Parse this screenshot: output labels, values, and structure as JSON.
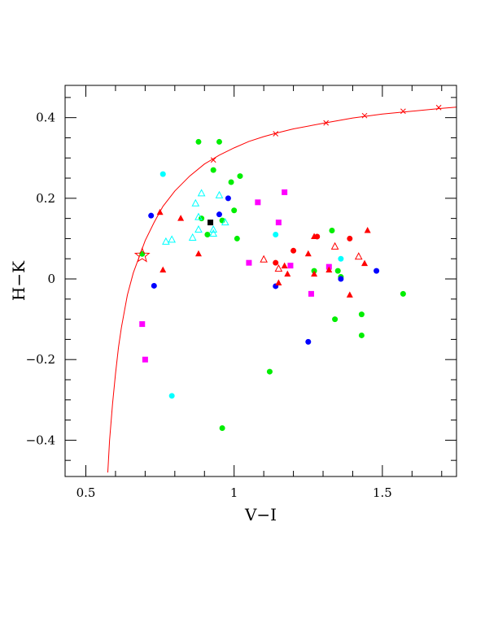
{
  "chart_data": {
    "type": "scatter",
    "xlabel": "V−I",
    "ylabel": "H−K",
    "xlim": [
      0.43,
      1.75
    ],
    "ylim": [
      -0.49,
      0.48
    ],
    "x_ticks": [
      {
        "value": 0.5,
        "label": "0.5"
      },
      {
        "value": 1.0,
        "label": "1"
      },
      {
        "value": 1.5,
        "label": "1.5"
      }
    ],
    "y_ticks": [
      {
        "value": 0.4,
        "label": "0.4"
      },
      {
        "value": 0.2,
        "label": "0.2"
      },
      {
        "value": 0.0,
        "label": "0"
      },
      {
        "value": -0.2,
        "label": "−0.2"
      },
      {
        "value": -0.4,
        "label": "−0.4"
      }
    ],
    "colors": {
      "red": "#ff0000",
      "green": "#00ee00",
      "blue": "#0000ff",
      "cyan": "#00ffff",
      "magenta": "#ff00ff",
      "black": "#000000",
      "curve": "#ff0000"
    },
    "curve": {
      "x": [
        0.574,
        0.58,
        0.59,
        0.6,
        0.61,
        0.62,
        0.64,
        0.66,
        0.68,
        0.7,
        0.73,
        0.76,
        0.8,
        0.85,
        0.9,
        0.95,
        1.0,
        1.05,
        1.1,
        1.15,
        1.2,
        1.3,
        1.4,
        1.5,
        1.6,
        1.7,
        1.75
      ],
      "y": [
        -0.48,
        -0.4,
        -0.31,
        -0.235,
        -0.17,
        -0.12,
        -0.04,
        0.015,
        0.055,
        0.095,
        0.14,
        0.18,
        0.218,
        0.255,
        0.285,
        0.307,
        0.325,
        0.341,
        0.353,
        0.363,
        0.372,
        0.386,
        0.399,
        0.409,
        0.416,
        0.423,
        0.426
      ]
    },
    "curve_markers": [
      {
        "x": 0.93,
        "y": 0.295
      },
      {
        "x": 1.14,
        "y": 0.36
      },
      {
        "x": 1.31,
        "y": 0.387
      },
      {
        "x": 1.44,
        "y": 0.405
      },
      {
        "x": 1.57,
        "y": 0.416
      },
      {
        "x": 1.69,
        "y": 0.425
      }
    ],
    "star": {
      "x": 0.69,
      "y": 0.058
    },
    "series": [
      {
        "marker": "filled-circle",
        "color": "green",
        "points": [
          {
            "x": 0.88,
            "y": 0.34
          },
          {
            "x": 0.95,
            "y": 0.34
          },
          {
            "x": 0.93,
            "y": 0.27
          },
          {
            "x": 1.02,
            "y": 0.255
          },
          {
            "x": 0.99,
            "y": 0.24
          },
          {
            "x": 1.0,
            "y": 0.17
          },
          {
            "x": 0.96,
            "y": 0.145
          },
          {
            "x": 0.89,
            "y": 0.15
          },
          {
            "x": 0.91,
            "y": 0.11
          },
          {
            "x": 1.01,
            "y": 0.1
          },
          {
            "x": 1.33,
            "y": 0.12
          },
          {
            "x": 1.27,
            "y": 0.02
          },
          {
            "x": 1.35,
            "y": 0.02
          },
          {
            "x": 1.36,
            "y": 0.005
          },
          {
            "x": 1.57,
            "y": -0.037
          },
          {
            "x": 1.43,
            "y": -0.088
          },
          {
            "x": 1.34,
            "y": -0.1
          },
          {
            "x": 1.43,
            "y": -0.14
          },
          {
            "x": 1.12,
            "y": -0.23
          },
          {
            "x": 0.96,
            "y": -0.37
          }
        ]
      },
      {
        "marker": "filled-circle",
        "color": "blue",
        "points": [
          {
            "x": 0.72,
            "y": 0.157
          },
          {
            "x": 0.98,
            "y": 0.2
          },
          {
            "x": 0.95,
            "y": 0.16
          },
          {
            "x": 0.73,
            "y": -0.017
          },
          {
            "x": 1.14,
            "y": -0.018
          },
          {
            "x": 1.36,
            "y": 0.0
          },
          {
            "x": 1.48,
            "y": 0.02
          },
          {
            "x": 1.25,
            "y": -0.156
          }
        ]
      },
      {
        "marker": "filled-circle",
        "color": "cyan",
        "points": [
          {
            "x": 0.76,
            "y": 0.26
          },
          {
            "x": 1.14,
            "y": 0.11
          },
          {
            "x": 1.36,
            "y": 0.05
          },
          {
            "x": 0.79,
            "y": -0.29
          }
        ]
      },
      {
        "marker": "filled-circle",
        "color": "red",
        "points": [
          {
            "x": 1.28,
            "y": 0.105
          },
          {
            "x": 1.39,
            "y": 0.1
          },
          {
            "x": 1.2,
            "y": 0.07
          },
          {
            "x": 1.14,
            "y": 0.04
          }
        ]
      },
      {
        "marker": "filled-square",
        "color": "magenta",
        "points": [
          {
            "x": 1.08,
            "y": 0.19
          },
          {
            "x": 1.17,
            "y": 0.215
          },
          {
            "x": 1.15,
            "y": 0.14
          },
          {
            "x": 1.05,
            "y": 0.04
          },
          {
            "x": 1.19,
            "y": 0.033
          },
          {
            "x": 1.32,
            "y": 0.03
          },
          {
            "x": 1.26,
            "y": -0.037
          },
          {
            "x": 0.69,
            "y": -0.112
          },
          {
            "x": 0.7,
            "y": -0.2
          }
        ]
      },
      {
        "marker": "filled-square",
        "color": "black",
        "points": [
          {
            "x": 0.92,
            "y": 0.14
          }
        ]
      },
      {
        "marker": "filled-triangle",
        "color": "red",
        "points": [
          {
            "x": 0.75,
            "y": 0.165
          },
          {
            "x": 0.82,
            "y": 0.15
          },
          {
            "x": 1.27,
            "y": 0.105
          },
          {
            "x": 1.45,
            "y": 0.12
          },
          {
            "x": 0.76,
            "y": 0.022
          },
          {
            "x": 0.88,
            "y": 0.062
          },
          {
            "x": 1.25,
            "y": 0.062
          },
          {
            "x": 1.18,
            "y": 0.012
          },
          {
            "x": 1.27,
            "y": 0.012
          },
          {
            "x": 1.17,
            "y": 0.032
          },
          {
            "x": 1.32,
            "y": 0.022
          },
          {
            "x": 1.44,
            "y": 0.038
          },
          {
            "x": 1.15,
            "y": -0.01
          },
          {
            "x": 1.39,
            "y": -0.04
          }
        ]
      },
      {
        "marker": "open-triangle",
        "color": "cyan",
        "points": [
          {
            "x": 0.89,
            "y": 0.212
          },
          {
            "x": 0.95,
            "y": 0.207
          },
          {
            "x": 0.87,
            "y": 0.187
          },
          {
            "x": 0.88,
            "y": 0.153
          },
          {
            "x": 0.97,
            "y": 0.14
          },
          {
            "x": 0.88,
            "y": 0.122
          },
          {
            "x": 0.93,
            "y": 0.122
          },
          {
            "x": 0.93,
            "y": 0.112
          },
          {
            "x": 0.86,
            "y": 0.102
          },
          {
            "x": 0.77,
            "y": 0.092
          },
          {
            "x": 0.79,
            "y": 0.097
          }
        ]
      },
      {
        "marker": "open-triangle",
        "color": "red",
        "points": [
          {
            "x": 1.34,
            "y": 0.08
          },
          {
            "x": 1.42,
            "y": 0.055
          },
          {
            "x": 1.1,
            "y": 0.048
          },
          {
            "x": 1.15,
            "y": 0.025
          }
        ]
      },
      {
        "marker": "filled-circle",
        "color": "green",
        "points": [
          {
            "x": 0.69,
            "y": 0.062
          }
        ]
      }
    ]
  }
}
